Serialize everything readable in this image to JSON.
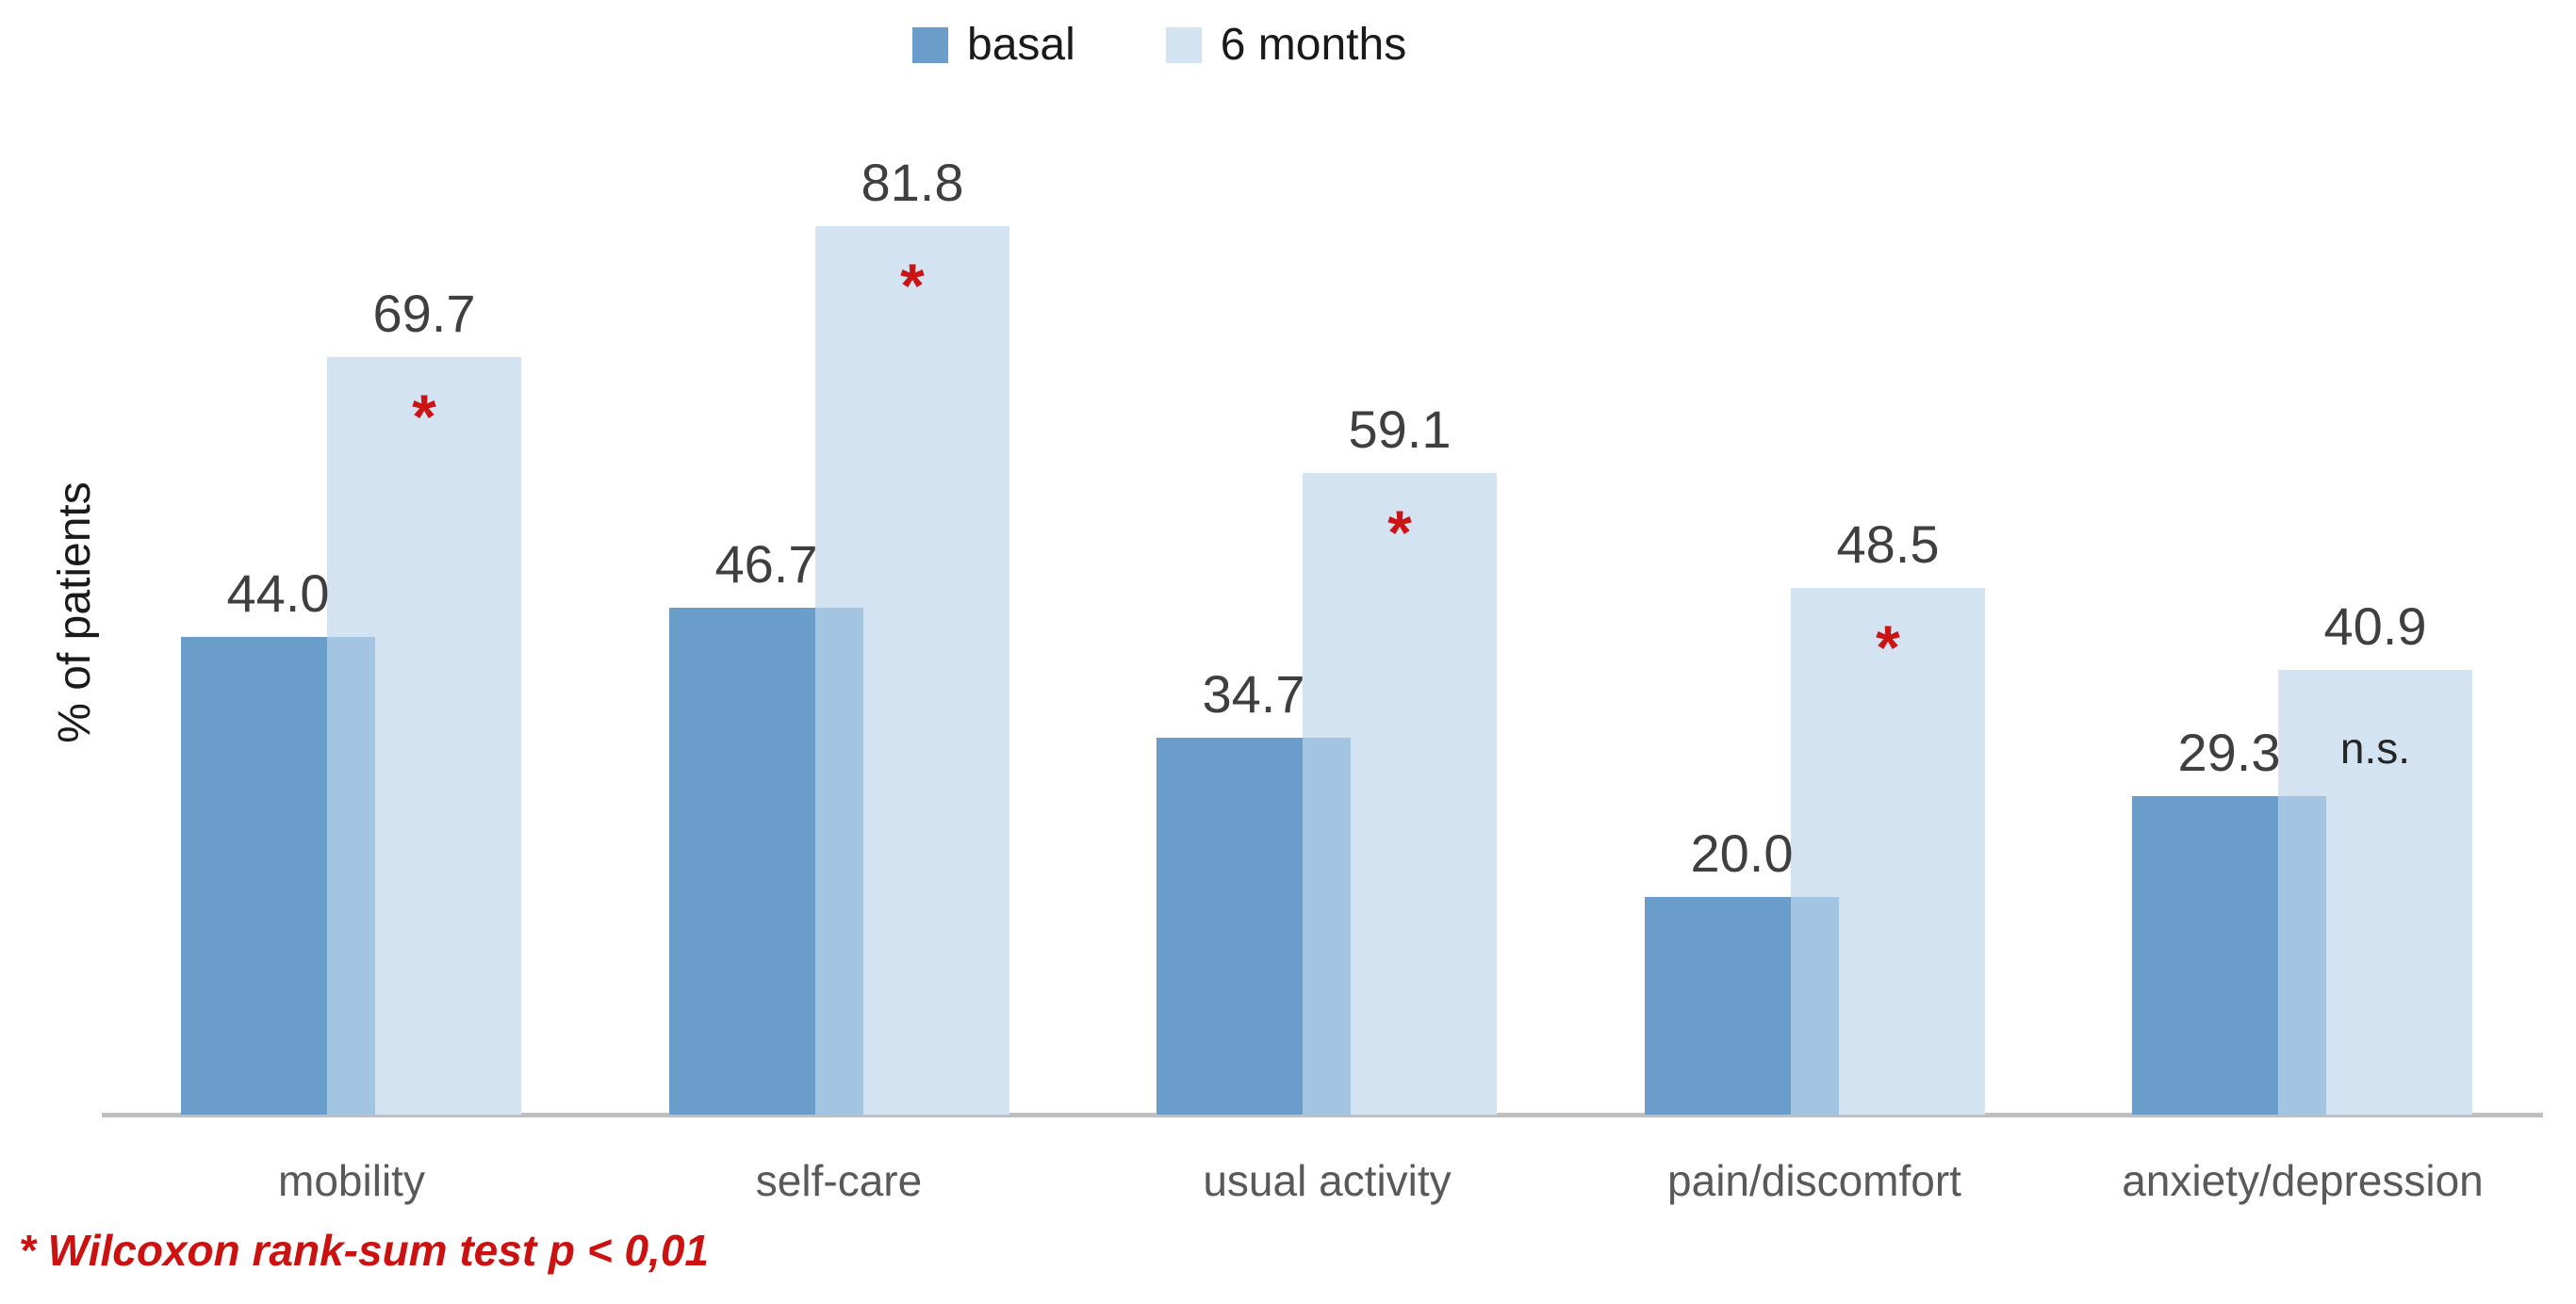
{
  "chart_data": {
    "type": "bar",
    "title": "",
    "xlabel": "",
    "ylabel": "% of patients",
    "ylim": [
      0,
      100
    ],
    "grid": false,
    "legend_position": "top-center",
    "value_decimals": 1,
    "categories": [
      "mobility",
      "self-care",
      "usual activity",
      "pain/discomfort",
      "anxiety/depression"
    ],
    "series": [
      {
        "name": "basal",
        "color": "#6B9DCA",
        "values": [
          44.0,
          46.7,
          34.7,
          20.0,
          29.3
        ]
      },
      {
        "name": "6 months",
        "color": "#D4E3F2",
        "values": [
          69.7,
          81.8,
          59.1,
          48.5,
          40.9
        ]
      }
    ],
    "overlap_color": "#A4C5E2",
    "significance_markers": [
      "*",
      "*",
      "*",
      "*",
      "n.s."
    ],
    "significance_star_color": "#CC1414",
    "significance_ns_color": "#262626",
    "axis_line_color": "#BFBFBF"
  },
  "footnote": {
    "text": "* Wilcoxon rank-sum test p < 0,01",
    "color": "#CC1111"
  }
}
